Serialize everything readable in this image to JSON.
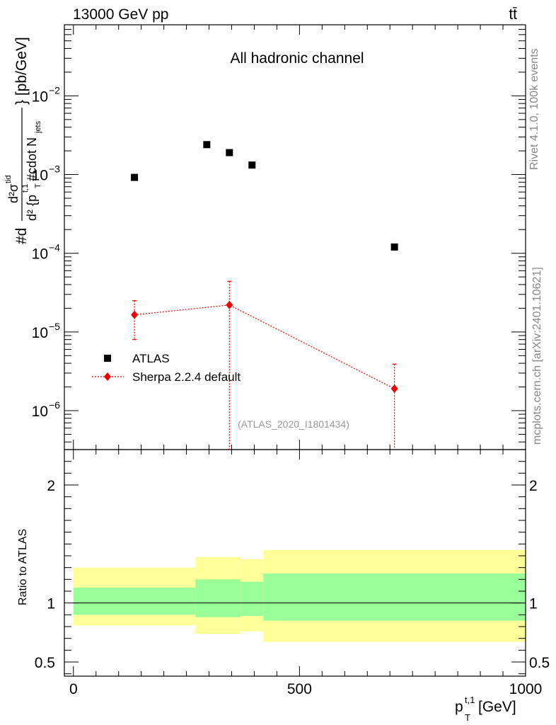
{
  "header": {
    "energy_label": "13000 GeV pp",
    "process_label": "tt̄",
    "channel_label": "All hadronic channel",
    "analysis_id": "(ATLAS_2020_I1801434)"
  },
  "side_text": {
    "rivet": "Rivet 4.1.0,  100k events",
    "mcplots": "mcplots.cern.ch [arXiv:2401.10621]"
  },
  "colors": {
    "data": "#000000",
    "mc": "#ee0000",
    "band_inner": "#99ff99",
    "band_outer": "#ffff99"
  },
  "chart_data": [
    {
      "type": "scatter",
      "panel": "main",
      "yscale": "log",
      "ylabel": "#d d²σ^{tid} / d²{p_T^{t,1} #cdot N_{jets}} [pb/GeV]",
      "ylabel_parts": {
        "prefix": "#d",
        "numerator": "d²σ",
        "numerator_sup": "tid",
        "denominator": "d² {p",
        "denominator_sup": "t,1",
        "denominator_sub": "T",
        "denominator_tail": "#cdot N",
        "denominator_tail_sub": "jets",
        "suffix": "} [pb/GeV]"
      },
      "xlim": [
        -20,
        1000
      ],
      "ylim": [
        3.2e-07,
        0.08
      ],
      "y_ticks": [
        {
          "value": 1e-06,
          "base": "10",
          "exp": "−6"
        },
        {
          "value": 1e-05,
          "base": "10",
          "exp": "−5"
        },
        {
          "value": 0.0001,
          "base": "10",
          "exp": "−4"
        },
        {
          "value": 0.001,
          "base": "10",
          "exp": "−3"
        },
        {
          "value": 0.01,
          "base": "10",
          "exp": "−2"
        }
      ],
      "legend_position": "lower-left",
      "series": [
        {
          "name": "ATLAS",
          "marker": "square",
          "x": [
            135,
            295,
            345,
            395,
            710
          ],
          "y": [
            0.00092,
            0.0024,
            0.0019,
            0.00132,
            0.00012
          ]
        },
        {
          "name": "Sherpa 2.2.4 default",
          "marker": "diamond",
          "line": "dotted",
          "x": [
            135,
            345,
            710
          ],
          "y": [
            1.65e-05,
            2.2e-05,
            1.9e-06
          ],
          "y_low": [
            8e-06,
            1e-07,
            1e-07
          ],
          "y_high": [
            2.5e-05,
            4.4e-05,
            3.9e-06
          ]
        }
      ]
    },
    {
      "type": "area",
      "panel": "ratio",
      "ylabel": "Ratio to ATLAS",
      "xlabel": "p_T^{t,1} [GeV]",
      "xlabel_parts": {
        "main": "p",
        "sub": "T",
        "sup": "t,1",
        "unit": " [GeV]"
      },
      "xlim": [
        -20,
        1000
      ],
      "ylim": [
        0.38,
        2.3
      ],
      "x_ticks": [
        {
          "value": 0,
          "label": "0"
        },
        {
          "value": 500,
          "label": "500"
        },
        {
          "value": 1000,
          "label": "1000"
        }
      ],
      "y_ticks": [
        {
          "value": 0.5,
          "label": "0.5"
        },
        {
          "value": 1,
          "label": "1"
        },
        {
          "value": 2,
          "label": "2"
        }
      ],
      "bins": [
        {
          "lo": 0,
          "hi": 270,
          "inner": [
            0.9,
            1.13
          ],
          "outer": [
            0.81,
            1.3
          ]
        },
        {
          "lo": 270,
          "hi": 370,
          "inner": [
            0.88,
            1.2
          ],
          "outer": [
            0.74,
            1.39
          ]
        },
        {
          "lo": 370,
          "hi": 420,
          "inner": [
            0.89,
            1.18
          ],
          "outer": [
            0.76,
            1.37
          ]
        },
        {
          "lo": 420,
          "hi": 1000,
          "inner": [
            0.85,
            1.25
          ],
          "outer": [
            0.67,
            1.45
          ]
        }
      ]
    }
  ]
}
